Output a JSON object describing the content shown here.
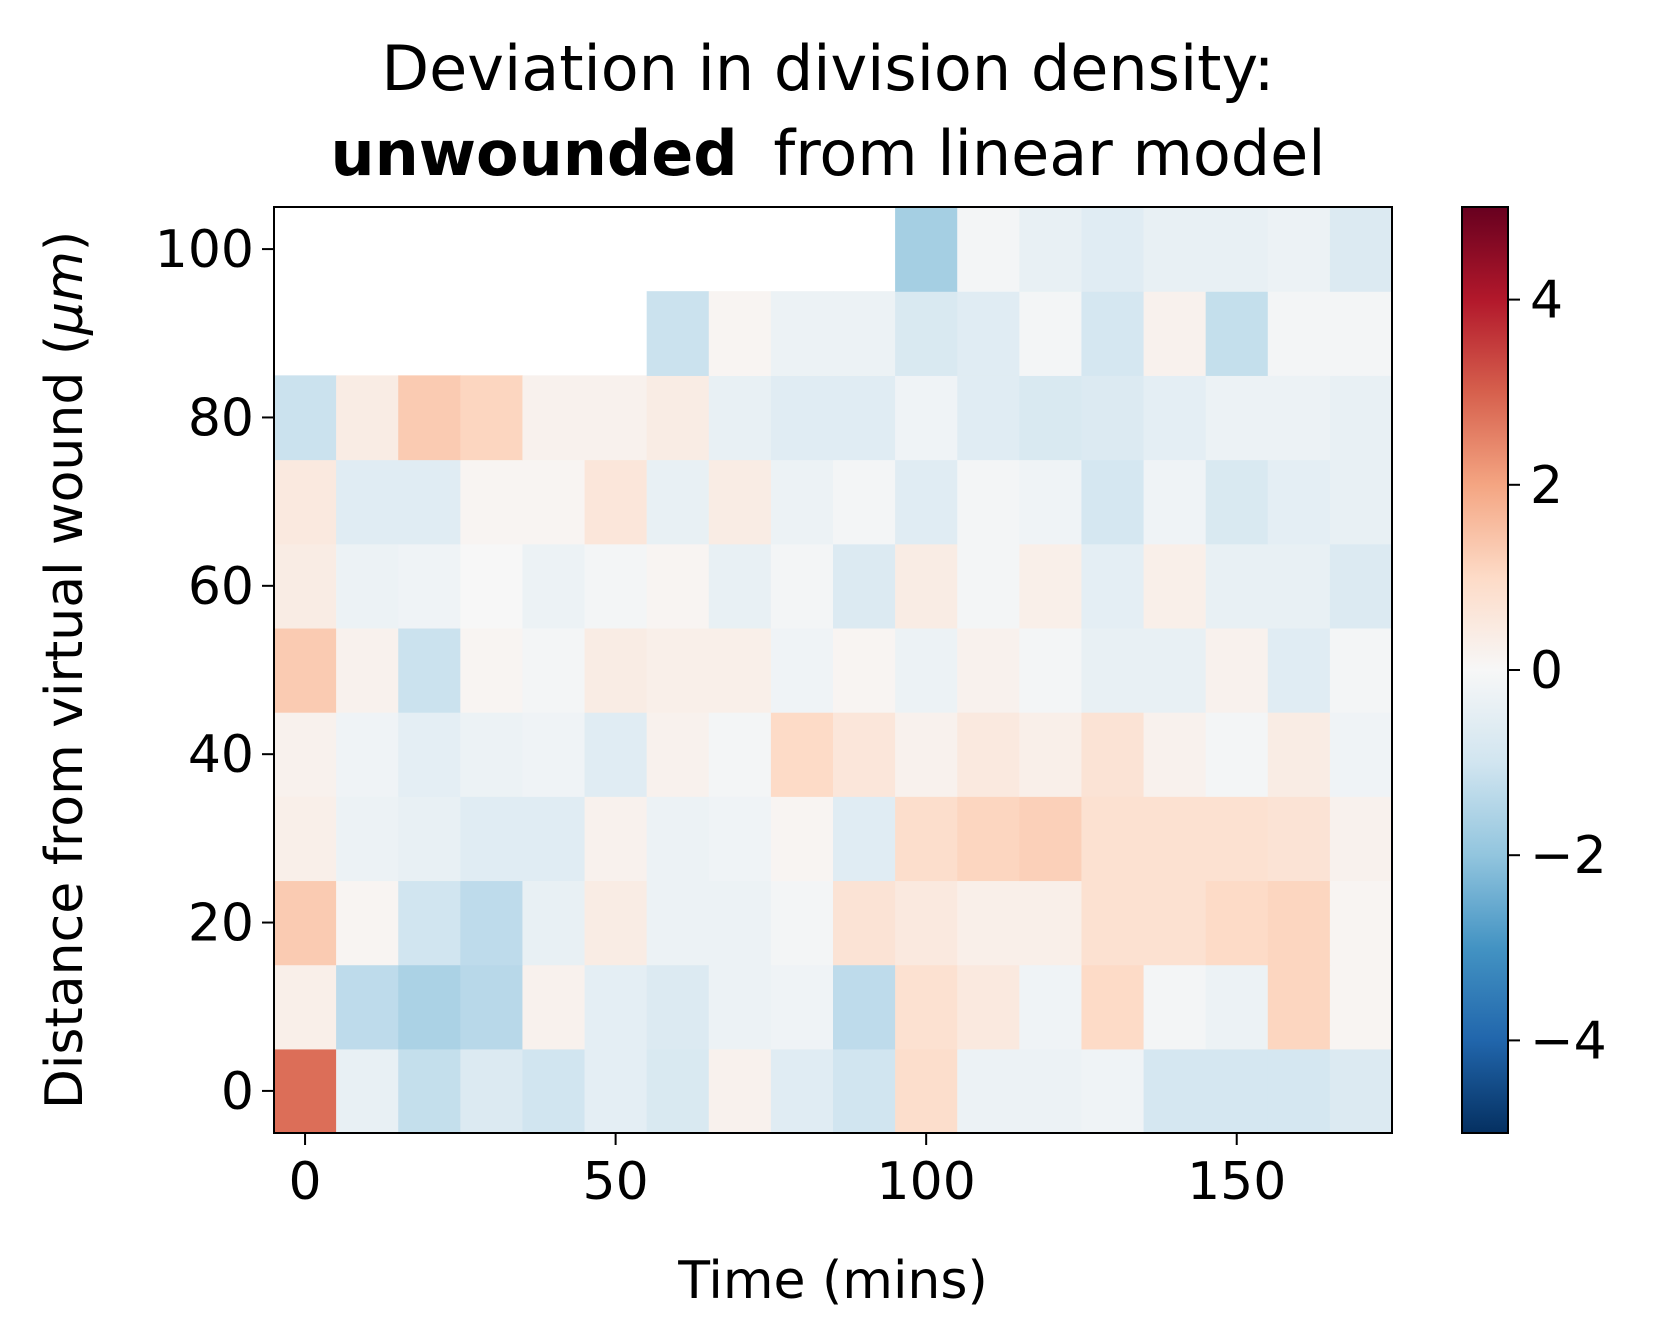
{
  "chart_data": {
    "type": "heatmap",
    "title_line1": "Deviation in division density:",
    "title_bold": "unwounded",
    "title_rest": "from linear model",
    "xlabel": "Time (mins)",
    "ylabel": "Distance from virtual wound (",
    "ylabel_unit": "μm",
    "ylabel_close": ")",
    "x_start": 0,
    "x_step": 10,
    "y_start": 0,
    "y_step": 10,
    "xlim": [
      -5,
      175
    ],
    "ylim": [
      -5,
      105
    ],
    "xticks": [
      {
        "value": 0,
        "label": "0"
      },
      {
        "value": 50,
        "label": "50"
      },
      {
        "value": 100,
        "label": "100"
      },
      {
        "value": 150,
        "label": "150"
      }
    ],
    "yticks": [
      {
        "value": 0,
        "label": "0"
      },
      {
        "value": 20,
        "label": "20"
      },
      {
        "value": 40,
        "label": "40"
      },
      {
        "value": 60,
        "label": "60"
      },
      {
        "value": 80,
        "label": "80"
      },
      {
        "value": 100,
        "label": "100"
      }
    ],
    "colorbar": {
      "colormap": "RdBu_r",
      "range": [
        -5,
        5
      ],
      "ticks": [
        {
          "value": -4,
          "label": "−4"
        },
        {
          "value": -2,
          "label": "−2"
        },
        {
          "value": 0,
          "label": "0"
        },
        {
          "value": 2,
          "label": "2"
        },
        {
          "value": 4,
          "label": "4"
        }
      ]
    },
    "values": [
      [
        2.8,
        -0.4,
        -1.2,
        -0.7,
        -1.0,
        -0.5,
        -0.8,
        0.2,
        -0.6,
        -1.0,
        0.9,
        -0.3,
        -0.3,
        -0.2,
        -0.9,
        -0.9,
        -0.9,
        -0.7
      ],
      [
        0.3,
        -1.3,
        -1.6,
        -1.4,
        0.2,
        -0.5,
        -0.7,
        -0.3,
        -0.2,
        -1.3,
        0.8,
        0.5,
        -0.2,
        1.0,
        -0.1,
        -0.3,
        1.1,
        0.1
      ],
      [
        1.3,
        0.1,
        -1.0,
        -1.3,
        -0.4,
        0.4,
        -0.3,
        -0.3,
        -0.1,
        0.7,
        0.5,
        0.3,
        0.3,
        0.8,
        0.8,
        1.0,
        1.1,
        0.1
      ],
      [
        0.3,
        -0.3,
        -0.4,
        -0.6,
        -0.6,
        0.2,
        -0.3,
        -0.2,
        0.1,
        -0.6,
        0.9,
        1.1,
        1.2,
        0.8,
        0.8,
        0.8,
        0.7,
        0.2
      ],
      [
        0.2,
        -0.2,
        -0.5,
        -0.3,
        -0.2,
        -0.6,
        0.2,
        -0.1,
        1.0,
        0.6,
        0.2,
        0.5,
        0.3,
        0.7,
        0.2,
        -0.1,
        0.4,
        -0.2
      ],
      [
        1.3,
        0.2,
        -1.1,
        0.1,
        -0.1,
        0.4,
        0.3,
        0.3,
        -0.2,
        0.1,
        -0.3,
        0.2,
        -0.1,
        -0.4,
        -0.4,
        0.2,
        -0.6,
        -0.1
      ],
      [
        0.4,
        -0.3,
        -0.2,
        0.0,
        -0.3,
        -0.1,
        0.1,
        -0.4,
        -0.1,
        -0.7,
        0.4,
        -0.1,
        0.3,
        -0.5,
        0.3,
        -0.4,
        -0.4,
        -0.7
      ],
      [
        0.5,
        -0.6,
        -0.6,
        0.1,
        0.1,
        0.6,
        -0.4,
        0.4,
        -0.3,
        -0.1,
        -0.6,
        -0.1,
        -0.2,
        -0.9,
        -0.2,
        -0.8,
        -0.5,
        -0.4
      ],
      [
        -1.1,
        0.4,
        1.3,
        1.1,
        0.2,
        0.2,
        0.4,
        -0.4,
        -0.6,
        -0.6,
        -0.2,
        -0.6,
        -0.8,
        -0.7,
        -0.5,
        -0.3,
        -0.3,
        -0.4
      ],
      [
        null,
        null,
        null,
        null,
        null,
        null,
        -1.1,
        0.1,
        -0.3,
        -0.3,
        -0.8,
        -0.6,
        -0.1,
        -0.9,
        0.2,
        -1.2,
        -0.1,
        -0.1
      ],
      [
        null,
        null,
        null,
        null,
        null,
        null,
        null,
        null,
        null,
        null,
        -1.7,
        -0.1,
        -0.4,
        -0.6,
        -0.4,
        -0.4,
        -0.3,
        -0.7
      ]
    ]
  }
}
